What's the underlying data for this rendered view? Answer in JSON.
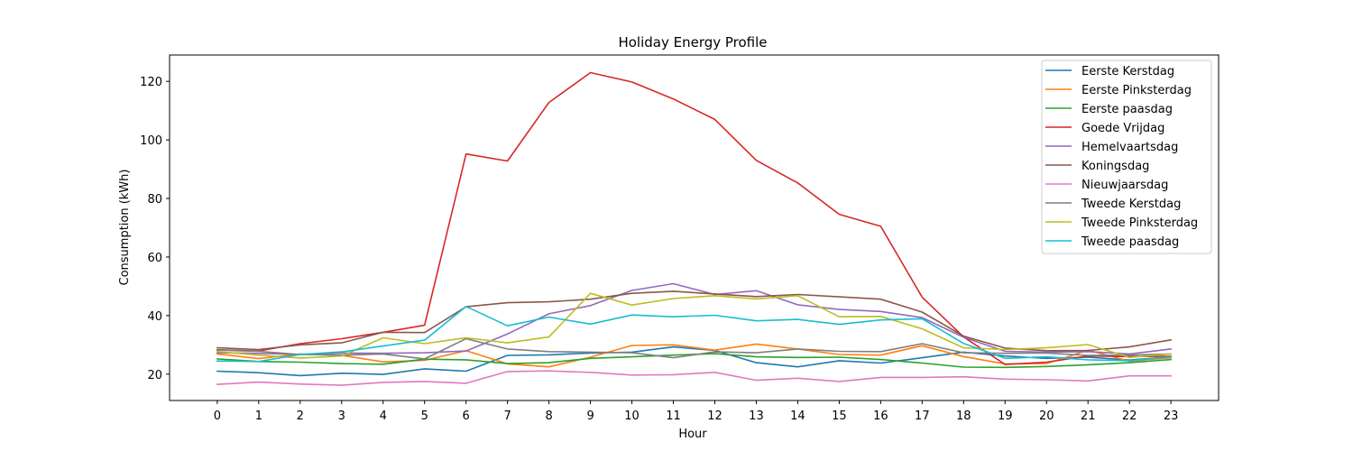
{
  "chart_data": {
    "type": "line",
    "title": "Holiday Energy Profile",
    "xlabel": "Hour",
    "ylabel": "Consumption (kWh)",
    "x": [
      0,
      1,
      2,
      3,
      4,
      5,
      6,
      7,
      8,
      9,
      10,
      11,
      12,
      13,
      14,
      15,
      16,
      17,
      18,
      19,
      20,
      21,
      22,
      23
    ],
    "xlim": [
      -1.15,
      24.15
    ],
    "ylim": [
      11,
      129
    ],
    "yticks": [
      20,
      40,
      60,
      80,
      100,
      120
    ],
    "grid": false,
    "legend_position": "top-right",
    "series": [
      {
        "name": "Eerste Kerstdag",
        "color": "#1f77b4",
        "values": [
          21.0,
          20.5,
          19.5,
          20.3,
          19.9,
          21.8,
          21.0,
          26.4,
          26.6,
          27.2,
          27.5,
          29.3,
          28.1,
          23.9,
          22.5,
          24.6,
          23.8,
          25.6,
          27.5,
          26.2,
          25.4,
          25.8,
          24.8,
          25.9
        ]
      },
      {
        "name": "Eerste Pinksterdag",
        "color": "#ff7f0e",
        "values": [
          26.9,
          25.3,
          26.9,
          26.4,
          24.2,
          24.7,
          28.0,
          23.5,
          22.5,
          25.8,
          29.8,
          30.0,
          28.2,
          30.3,
          28.6,
          26.7,
          26.5,
          29.7,
          26.0,
          23.5,
          23.6,
          28.2,
          24.4,
          25.6
        ]
      },
      {
        "name": "Eerste paasdag",
        "color": "#2ca02c",
        "values": [
          25.2,
          24.3,
          24.1,
          23.6,
          23.4,
          25.1,
          24.9,
          23.6,
          23.9,
          25.4,
          25.9,
          26.5,
          27.0,
          25.9,
          25.7,
          25.8,
          25.0,
          23.8,
          22.4,
          22.3,
          22.6,
          23.2,
          23.9,
          25.0
        ]
      },
      {
        "name": "Goede Vrijdag",
        "color": "#d62728",
        "values": [
          28.3,
          27.9,
          30.4,
          32.1,
          34.3,
          36.7,
          95.2,
          92.8,
          112.8,
          123.0,
          119.8,
          114.0,
          107.0,
          93.0,
          85.3,
          74.6,
          70.5,
          46.3,
          32.7,
          23.3,
          24.1,
          26.2,
          26.0,
          26.1
        ]
      },
      {
        "name": "Hemelvaartsdag",
        "color": "#9467bd",
        "values": [
          27.3,
          27.1,
          26.7,
          27.2,
          27.1,
          27.3,
          27.9,
          33.7,
          40.6,
          43.4,
          48.6,
          50.9,
          47.2,
          48.5,
          43.7,
          42.1,
          41.4,
          39.3,
          32.6,
          27.8,
          27.5,
          27.7,
          26.9,
          28.6
        ]
      },
      {
        "name": "Koningsdag",
        "color": "#8c564b",
        "values": [
          29.0,
          28.4,
          30.0,
          30.7,
          34.3,
          34.2,
          43.0,
          44.4,
          44.7,
          45.6,
          47.6,
          48.3,
          47.4,
          46.5,
          47.2,
          46.4,
          45.6,
          41.2,
          33.0,
          28.9,
          28.0,
          28.1,
          29.3,
          31.7
        ]
      },
      {
        "name": "Nieuwjaarsdag",
        "color": "#e377c2",
        "values": [
          16.5,
          17.3,
          16.6,
          16.2,
          17.2,
          17.5,
          16.9,
          20.9,
          21.1,
          20.6,
          19.7,
          19.8,
          20.6,
          17.9,
          18.6,
          17.5,
          18.9,
          18.9,
          19.1,
          18.3,
          18.1,
          17.7,
          19.4,
          19.4
        ]
      },
      {
        "name": "Tweede Kerstdag",
        "color": "#7f7f7f",
        "values": [
          28.2,
          27.8,
          26.7,
          26.5,
          26.9,
          25.2,
          32.1,
          28.6,
          27.7,
          27.5,
          27.3,
          25.6,
          27.6,
          27.3,
          28.6,
          27.8,
          27.7,
          30.4,
          27.3,
          27.1,
          27.2,
          26.4,
          26.5,
          26.9
        ]
      },
      {
        "name": "Tweede Pinksterdag",
        "color": "#bcbd22",
        "values": [
          27.7,
          26.5,
          25.5,
          26.2,
          32.4,
          30.4,
          32.4,
          30.7,
          32.7,
          47.6,
          43.6,
          45.8,
          46.8,
          45.7,
          46.8,
          39.6,
          39.7,
          35.5,
          29.0,
          28.4,
          29.0,
          30.1,
          25.7,
          26.9
        ]
      },
      {
        "name": "Tweede paasdag",
        "color": "#17becf",
        "values": [
          24.5,
          24.3,
          26.7,
          27.6,
          29.6,
          31.6,
          43.1,
          36.5,
          39.5,
          37.1,
          40.2,
          39.6,
          40.1,
          38.2,
          38.7,
          37.0,
          38.5,
          38.9,
          30.5,
          25.4,
          25.9,
          24.9,
          24.6,
          25.9
        ]
      }
    ]
  }
}
